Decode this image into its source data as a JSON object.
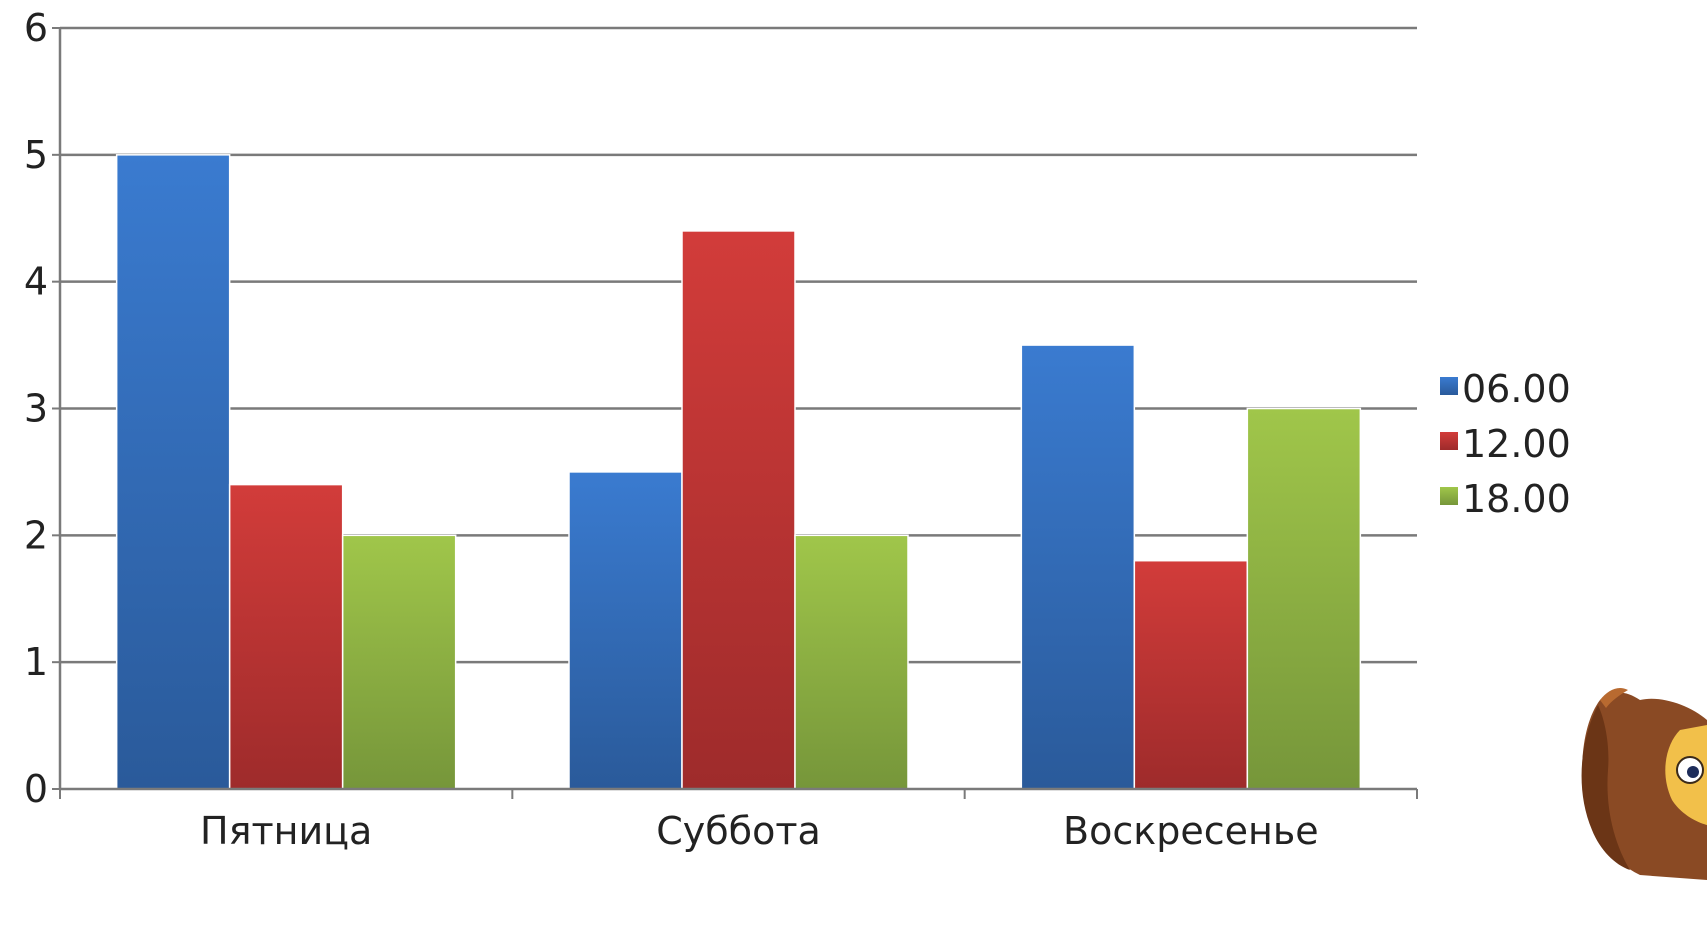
{
  "chart_data": {
    "type": "bar",
    "categories": [
      "Пятница",
      "Суббота",
      "Воскресенье"
    ],
    "series": [
      {
        "name": "06.00",
        "values": [
          5,
          2.5,
          3.5
        ],
        "color": "#3a73c4"
      },
      {
        "name": "12.00",
        "values": [
          2.4,
          4.4,
          1.8
        ],
        "color": "#c4393a"
      },
      {
        "name": "18.00",
        "values": [
          2,
          2,
          3
        ],
        "color": "#93b944"
      }
    ],
    "ylim": [
      0,
      6
    ],
    "yticks": [
      "0",
      "1",
      "2",
      "3",
      "4",
      "5",
      "6"
    ],
    "grid": true,
    "legend": "right",
    "title": "",
    "xlabel": "",
    "ylabel": ""
  },
  "decoration": {
    "icon": "owl-icon"
  }
}
